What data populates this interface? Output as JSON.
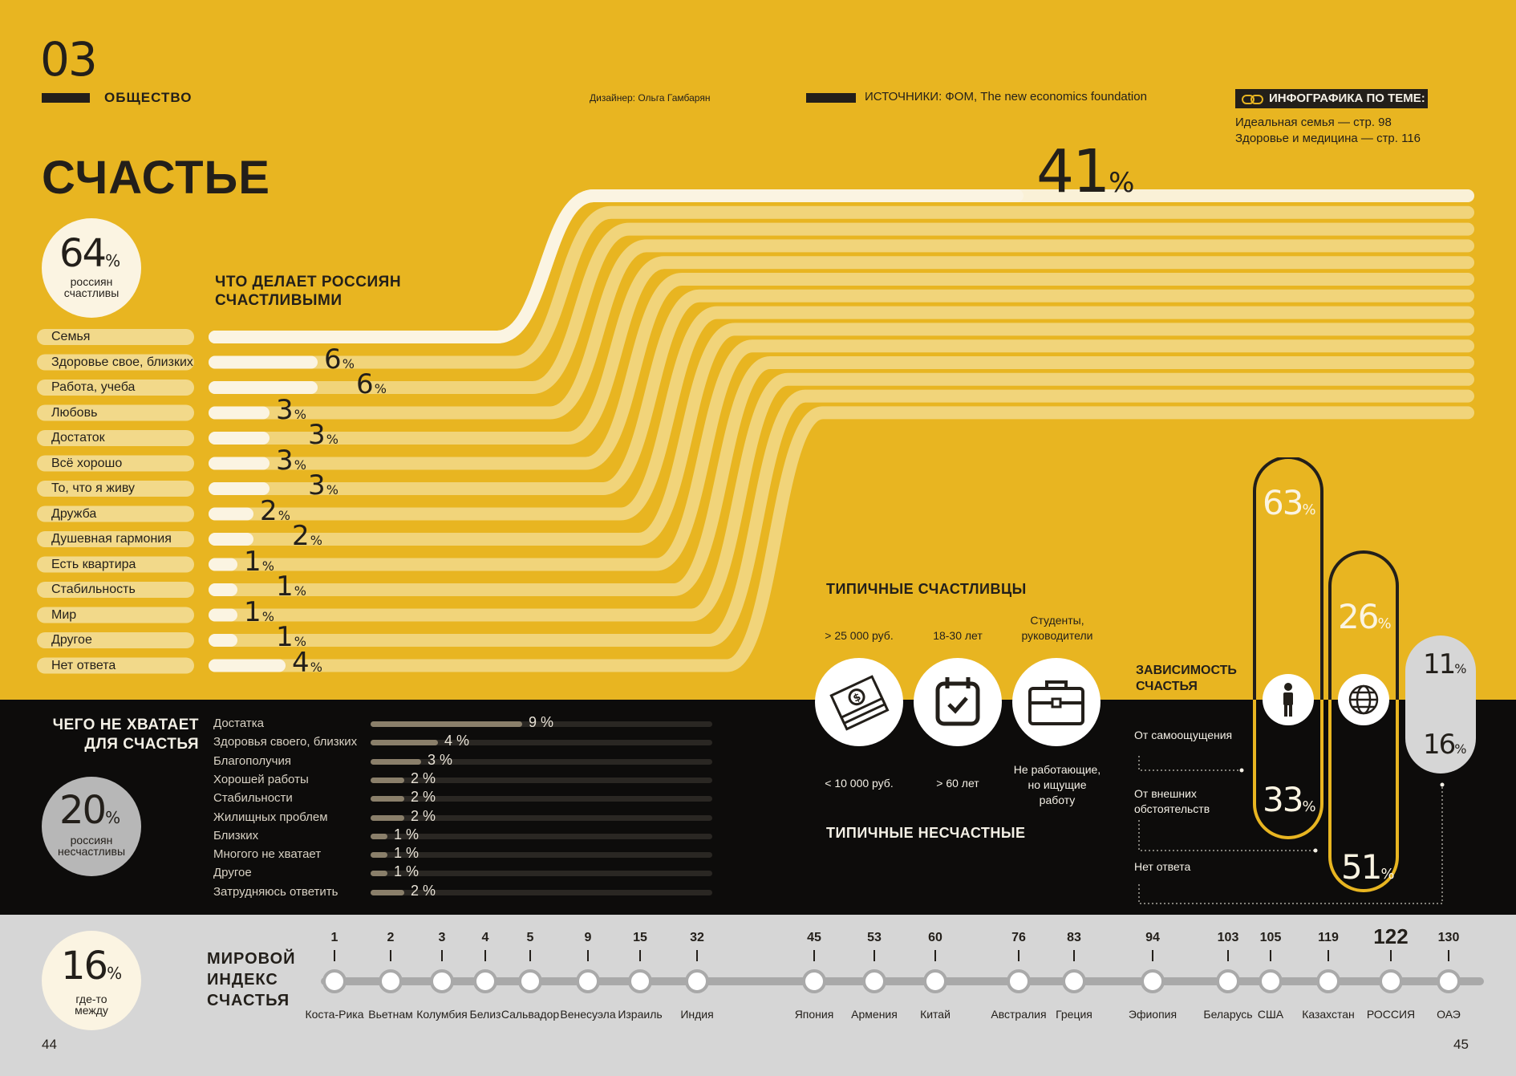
{
  "header": {
    "section_number": "03",
    "section_name": "ОБЩЕСТВО",
    "designer": "Дизайнер: Ольга Гамбарян",
    "sources": "ИСТОЧНИКИ: ФОМ, The new economics foundation",
    "related_title": "ИНФОГРАФИКА ПО ТЕМЕ:",
    "related_links": [
      "Идеальная семья — стр. 98",
      "Здоровье и медицина — стр. 116"
    ]
  },
  "title": "СЧАСТЬЕ",
  "happy_badge": {
    "value": "64",
    "unit": "%",
    "caption_line1": "россиян",
    "caption_line2": "счастливы"
  },
  "happy_section": {
    "title_line1": "ЧТО ДЕЛАЕТ РОССИЯН",
    "title_line2": "СЧАСТЛИВЫМИ",
    "top_value": "41",
    "top_unit": "%",
    "items": [
      {
        "label": "Семья",
        "value": 41,
        "text": "41"
      },
      {
        "label": "Здоровье свое, близких",
        "value": 6,
        "text": "6"
      },
      {
        "label": "Работа, учеба",
        "value": 6,
        "text": "6"
      },
      {
        "label": "Любовь",
        "value": 3,
        "text": "3"
      },
      {
        "label": "Достаток",
        "value": 3,
        "text": "3"
      },
      {
        "label": "Всё хорошо",
        "value": 3,
        "text": "3"
      },
      {
        "label": "То, что я живу",
        "value": 3,
        "text": "3"
      },
      {
        "label": "Дружба",
        "value": 2,
        "text": "2"
      },
      {
        "label": "Душевная гармония",
        "value": 2,
        "text": "2"
      },
      {
        "label": "Есть квартира",
        "value": 1,
        "text": "1"
      },
      {
        "label": "Стабильность",
        "value": 1,
        "text": "1"
      },
      {
        "label": "Мир",
        "value": 1,
        "text": "1"
      },
      {
        "label": "Другое",
        "value": 1,
        "text": "1"
      },
      {
        "label": "Нет ответа",
        "value": 4,
        "text": "4"
      }
    ],
    "unit": "%"
  },
  "missing_section": {
    "title_line1": "ЧЕГО НЕ ХВАТАЕТ",
    "title_line2": "ДЛЯ СЧАСТЬЯ",
    "items": [
      {
        "label": "Достатка",
        "value": 9,
        "text": "9 %"
      },
      {
        "label": "Здоровья своего, близких",
        "value": 4,
        "text": "4 %"
      },
      {
        "label": "Благополучия",
        "value": 3,
        "text": "3 %"
      },
      {
        "label": "Хорошей работы",
        "value": 2,
        "text": "2 %"
      },
      {
        "label": "Стабильности",
        "value": 2,
        "text": "2 %"
      },
      {
        "label": "Жилищных проблем",
        "value": 2,
        "text": "2 %"
      },
      {
        "label": "Близких",
        "value": 1,
        "text": "1 %"
      },
      {
        "label": "Многого не хватает",
        "value": 1,
        "text": "1 %"
      },
      {
        "label": "Другое",
        "value": 1,
        "text": "1 %"
      },
      {
        "label": "Затрудняюсь ответить",
        "value": 2,
        "text": "2 %"
      }
    ]
  },
  "unhappy_badge": {
    "value": "20",
    "unit": "%",
    "caption_line1": "россиян",
    "caption_line2": "несчастливы"
  },
  "typical": {
    "happy_title": "ТИПИЧНЫЕ СЧАСТЛИВЦЫ",
    "unhappy_title": "ТИПИЧНЫЕ НЕСЧАСТНЫЕ",
    "columns": [
      {
        "icon": "money-icon",
        "happy": "> 25 000 руб.",
        "unhappy": "< 10 000 руб."
      },
      {
        "icon": "calendar-icon",
        "happy": "18-30 лет",
        "unhappy": "> 60 лет"
      },
      {
        "icon": "briefcase-icon",
        "happy_line1": "Студенты,",
        "happy_line2": "руководители",
        "unhappy_line1": "Не работающие,",
        "unhappy_line2": "но ищущие",
        "unhappy_line3": "работу"
      }
    ]
  },
  "dependence": {
    "title_line1": "ЗАВИСИМОСТЬ",
    "title_line2": "СЧАСТЬЯ",
    "rows": [
      "От самоощущения",
      "От внешних обстоятельств",
      "Нет ответа"
    ],
    "pills": [
      {
        "icon": "person-icon",
        "top": "63",
        "bottom": "33",
        "unit": "%"
      },
      {
        "icon": "globe-icon",
        "top": "26",
        "bottom": "51",
        "unit": "%"
      },
      {
        "icon": "",
        "top": "11",
        "bottom": "16",
        "unit": "%"
      }
    ]
  },
  "world_index": {
    "title_line1": "МИРОВОЙ",
    "title_line2": "ИНДЕКС",
    "title_line3": "СЧАСТЬЯ",
    "badge": {
      "value": "16",
      "unit": "%",
      "caption_line1": "где-то",
      "caption_line2": "между"
    },
    "countries": [
      {
        "rank": "1",
        "name": "Коста-Рика"
      },
      {
        "rank": "2",
        "name": "Вьетнам"
      },
      {
        "rank": "3",
        "name": "Колумбия"
      },
      {
        "rank": "4",
        "name": "Белиз"
      },
      {
        "rank": "5",
        "name": "Сальвадор"
      },
      {
        "rank": "9",
        "name": "Венесуэла"
      },
      {
        "rank": "15",
        "name": "Израиль"
      },
      {
        "rank": "32",
        "name": "Индия"
      },
      {
        "rank": "45",
        "name": "Япония"
      },
      {
        "rank": "53",
        "name": "Армения"
      },
      {
        "rank": "60",
        "name": "Китай"
      },
      {
        "rank": "76",
        "name": "Австралия"
      },
      {
        "rank": "83",
        "name": "Греция"
      },
      {
        "rank": "94",
        "name": "Эфиопия"
      },
      {
        "rank": "103",
        "name": "Беларусь"
      },
      {
        "rank": "105",
        "name": "США"
      },
      {
        "rank": "119",
        "name": "Казахстан"
      },
      {
        "rank": "122",
        "name": "РОССИЯ"
      },
      {
        "rank": "130",
        "name": "ОАЭ"
      }
    ]
  },
  "pages": {
    "left": "44",
    "right": "45"
  },
  "colors": {
    "yellow": "#e8b521",
    "black": "#0d0c0b",
    "grey": "#d6d6d6",
    "stripe": "#f2d98a",
    "cream": "#fbf4e2"
  }
}
